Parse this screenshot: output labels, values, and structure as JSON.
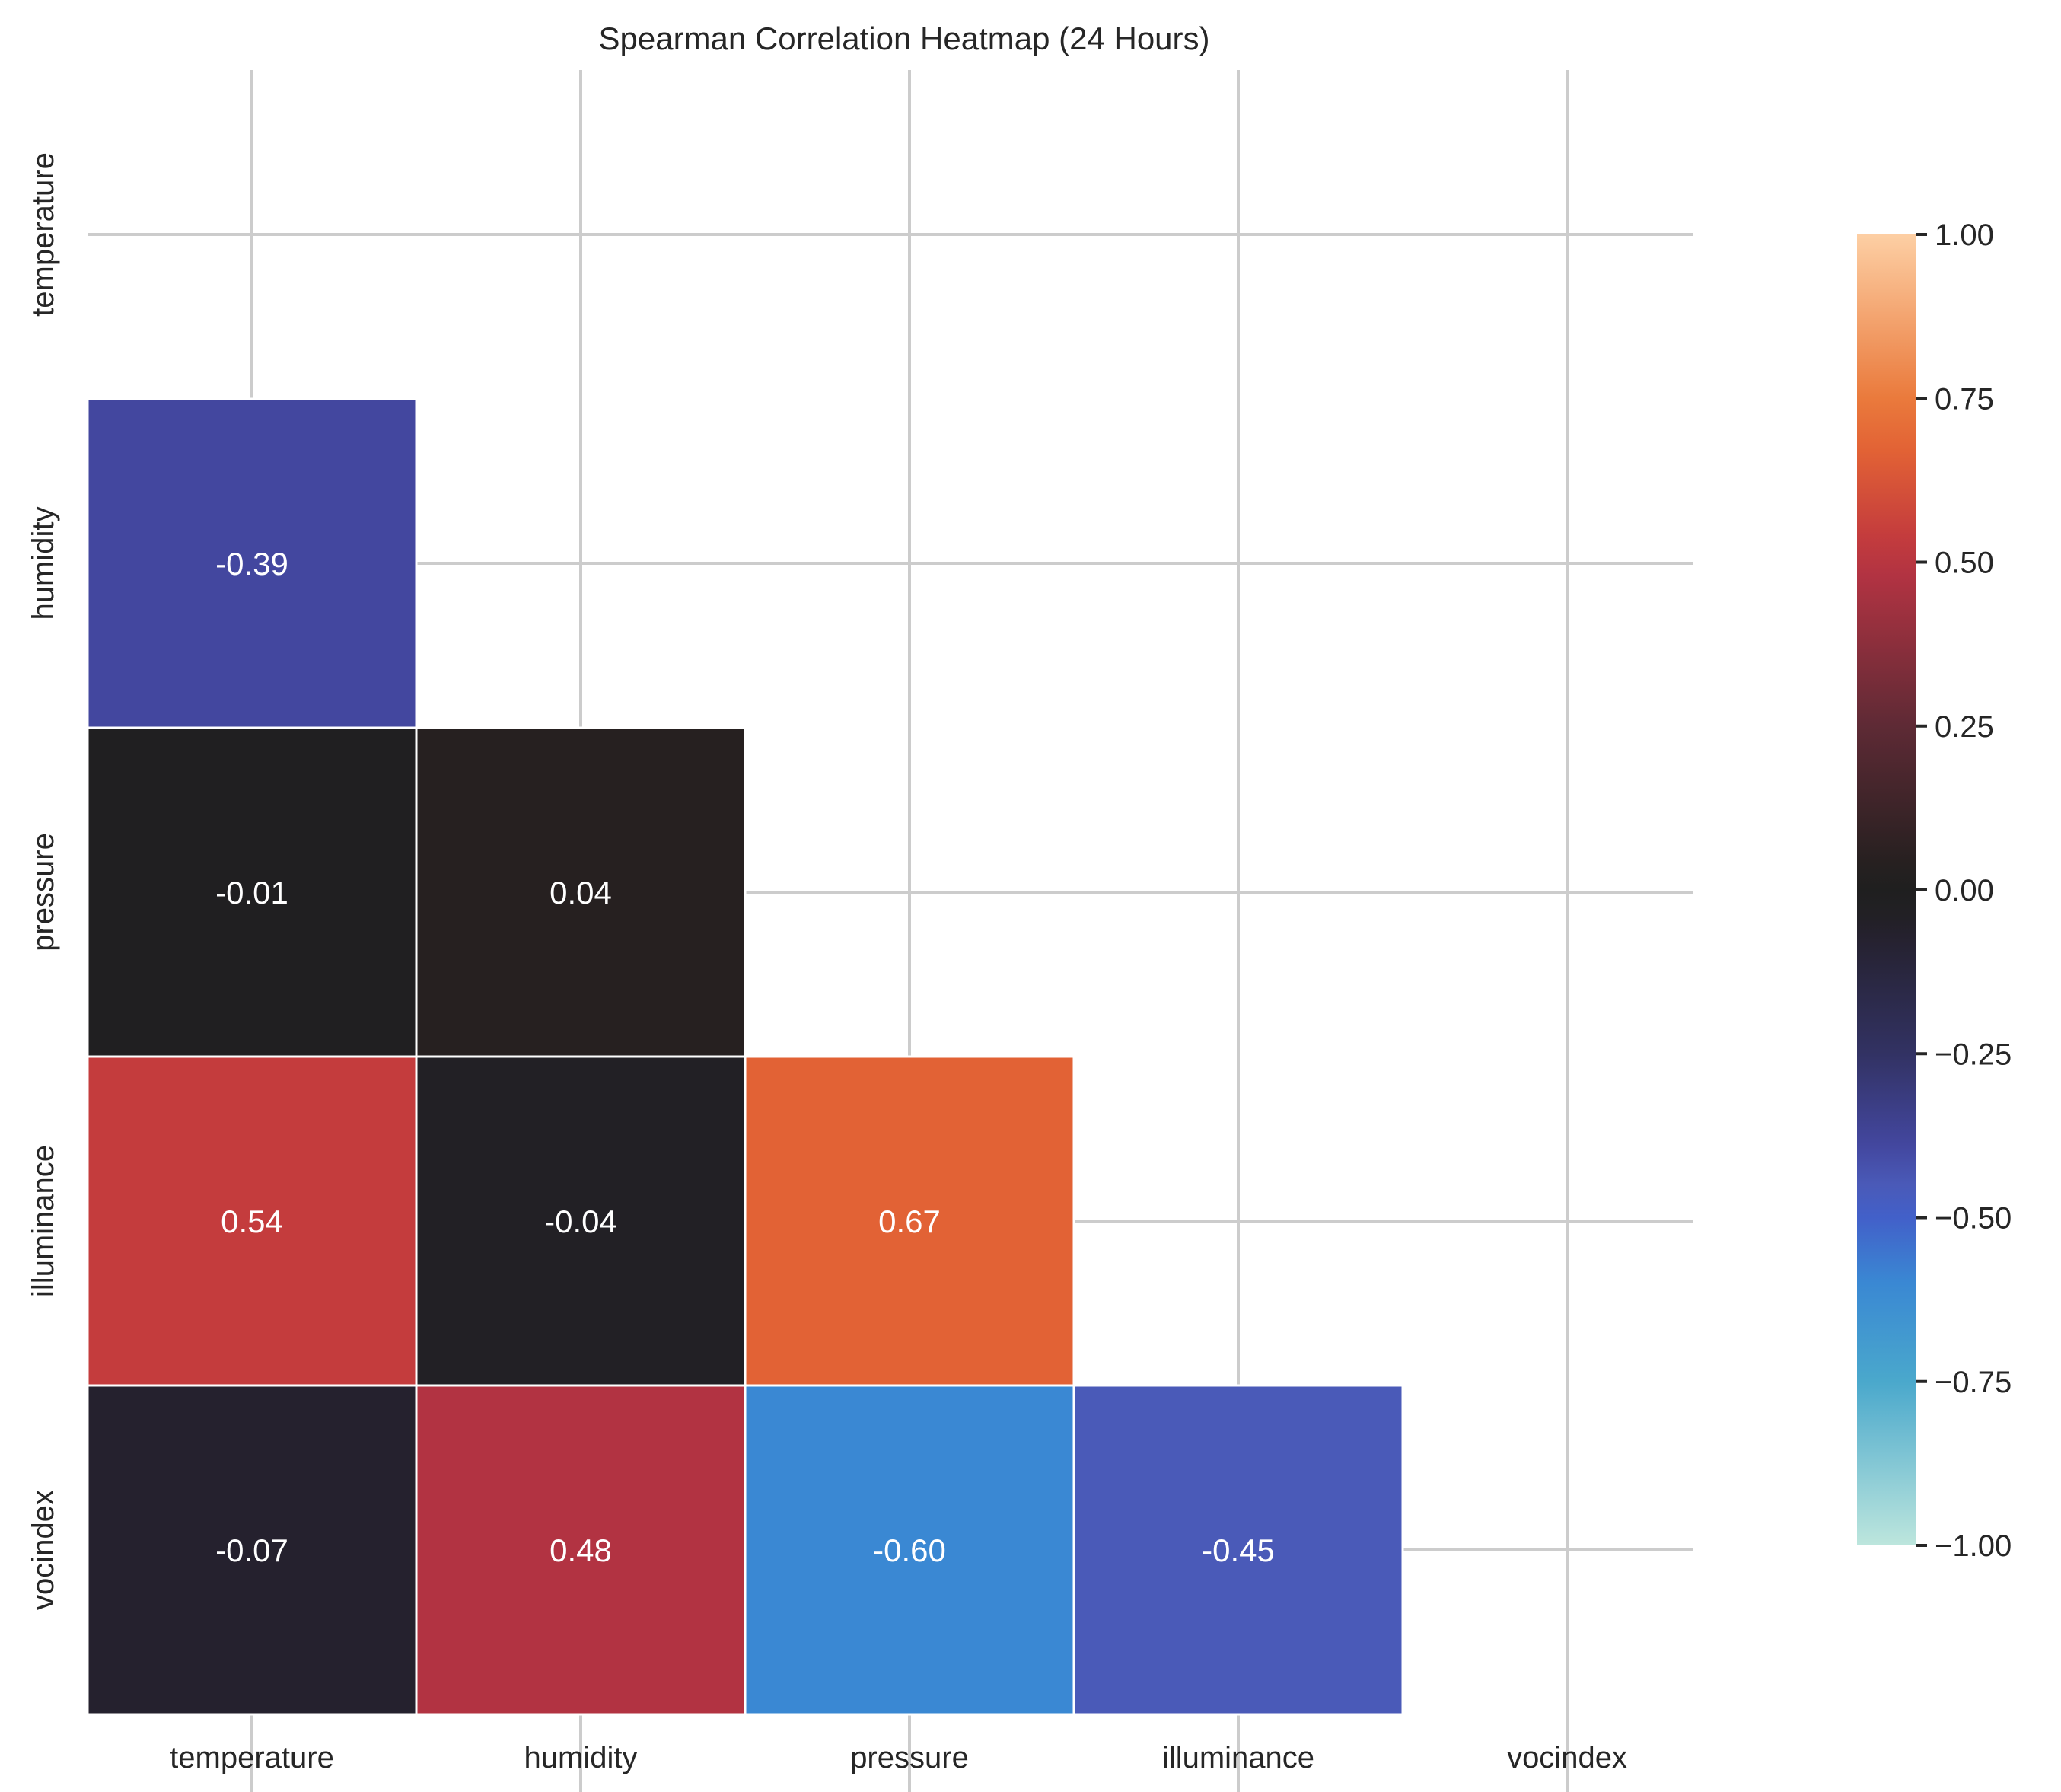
{
  "chart_data": {
    "type": "heatmap",
    "title": "Spearman Correlation Heatmap (24 Hours)",
    "variables": [
      "temperature",
      "humidity",
      "pressure",
      "illuminance",
      "vocindex"
    ],
    "matrix": [
      [
        null,
        null,
        null,
        null,
        null
      ],
      [
        -0.39,
        null,
        null,
        null,
        null
      ],
      [
        -0.01,
        0.04,
        null,
        null,
        null
      ],
      [
        0.54,
        -0.04,
        0.67,
        null,
        null
      ],
      [
        -0.07,
        0.48,
        -0.6,
        -0.45,
        null
      ]
    ],
    "mask": "upper triangle including diagonal",
    "value_format": "0.00",
    "colormap": "icefire",
    "colorbar": {
      "range": [
        -1.0,
        1.0
      ],
      "ticks": [
        1.0,
        0.75,
        0.5,
        0.25,
        0.0,
        -0.25,
        -0.5,
        -0.75,
        -1.0
      ],
      "tick_labels": [
        "1.00",
        "0.75",
        "0.50",
        "0.25",
        "0.00",
        "−0.25",
        "−0.50",
        "−0.75",
        "−1.00"
      ]
    },
    "grid": true
  },
  "colors": {
    "gradient_stops": [
      {
        "v": -1.0,
        "c": "#bde6dd"
      },
      {
        "v": -0.75,
        "c": "#4aa8cc"
      },
      {
        "v": -0.6,
        "c": "#3a88d3"
      },
      {
        "v": -0.5,
        "c": "#4260c9"
      },
      {
        "v": -0.45,
        "c": "#4a5ab8"
      },
      {
        "v": -0.39,
        "c": "#43479f"
      },
      {
        "v": -0.25,
        "c": "#323263"
      },
      {
        "v": -0.07,
        "c": "#25212e"
      },
      {
        "v": -0.04,
        "c": "#222025"
      },
      {
        "v": 0.0,
        "c": "#1f1f1f"
      },
      {
        "v": 0.04,
        "c": "#262020"
      },
      {
        "v": 0.25,
        "c": "#5e2a35"
      },
      {
        "v": 0.48,
        "c": "#b23342"
      },
      {
        "v": 0.54,
        "c": "#c43c3d"
      },
      {
        "v": 0.67,
        "c": "#e26235"
      },
      {
        "v": 0.75,
        "c": "#ea7a3c"
      },
      {
        "v": 1.0,
        "c": "#fdcfa4"
      }
    ],
    "gridline": "#cccccc",
    "cell_text": "#ffffff"
  }
}
